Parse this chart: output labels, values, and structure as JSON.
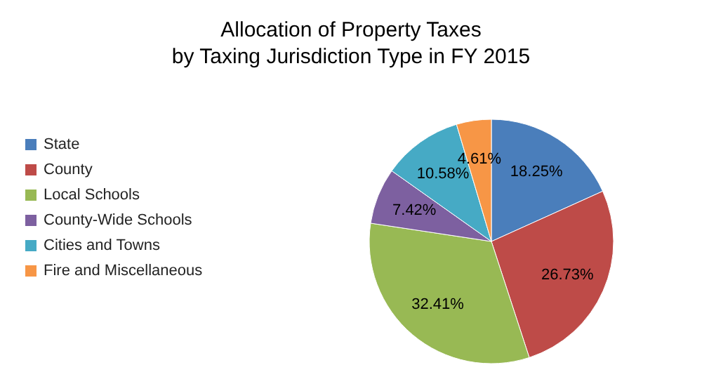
{
  "chart_data": {
    "type": "pie",
    "title": "Allocation of Property Taxes\nby Taxing Jurisdiction Type in FY 2015",
    "categories": [
      "State",
      "County",
      "Local Schools",
      "County-Wide Schools",
      "Cities and Towns",
      "Fire and Miscellaneous"
    ],
    "values": [
      18.25,
      26.73,
      32.41,
      7.42,
      10.58,
      4.61
    ],
    "colors": [
      "#4a7ebb",
      "#be4b48",
      "#98b954",
      "#7d60a0",
      "#46aac5",
      "#f79646"
    ],
    "value_labels": [
      "18.25%",
      "26.73%",
      "32.41%",
      "7.42%",
      "10.58%",
      "4.61%"
    ],
    "legend": "left"
  }
}
